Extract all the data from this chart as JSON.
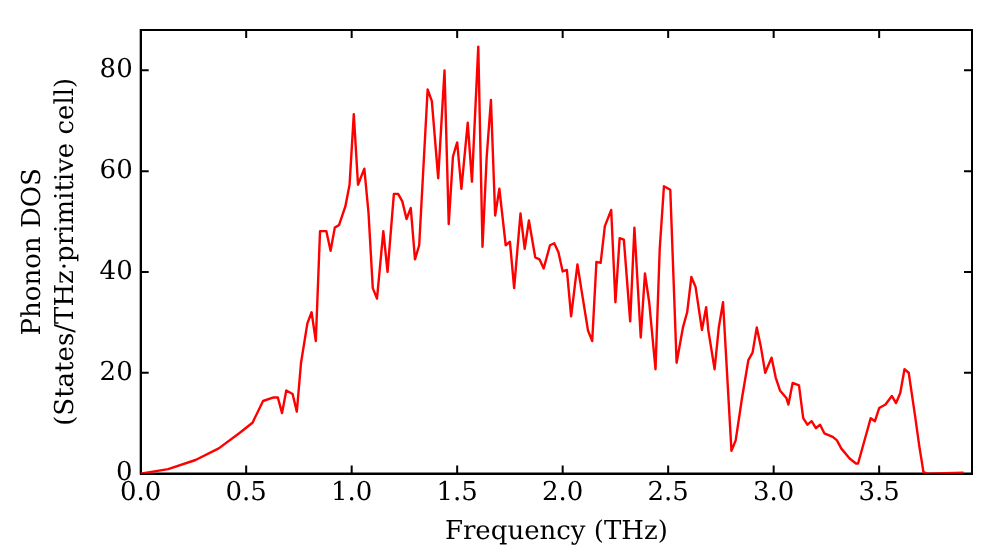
{
  "chart_data": {
    "type": "line",
    "xlabel": "Frequency (THz)",
    "ylabel": "Phonon DOS\n(States/THz·primitive cell)",
    "xlim": [
      0,
      3.94
    ],
    "ylim": [
      0,
      88
    ],
    "xticks": [
      {
        "value": 0,
        "label": "0.0"
      },
      {
        "value": 0.5,
        "label": "0.5"
      },
      {
        "value": 1,
        "label": "1.0"
      },
      {
        "value": 1.5,
        "label": "1.5"
      },
      {
        "value": 2,
        "label": "2.0"
      },
      {
        "value": 2.5,
        "label": "2.5"
      },
      {
        "value": 3,
        "label": "3.0"
      },
      {
        "value": 3.5,
        "label": "3.5"
      }
    ],
    "yticks": [
      0,
      20,
      40,
      60,
      80
    ],
    "grid": false,
    "legend": false,
    "marker": "none",
    "line_style": "solid",
    "series": [
      {
        "color": "#ff0000",
        "x": [
          0,
          0.13,
          0.26,
          0.37,
          0.47,
          0.53,
          0.58,
          0.63,
          0.65,
          0.67,
          0.69,
          0.72,
          0.74,
          0.76,
          0.79,
          0.81,
          0.83,
          0.85,
          0.88,
          0.9,
          0.92,
          0.94,
          0.97,
          0.99,
          1.01,
          1.03,
          1.06,
          1.08,
          1.1,
          1.12,
          1.15,
          1.17,
          1.2,
          1.22,
          1.24,
          1.26,
          1.28,
          1.3,
          1.32,
          1.36,
          1.38,
          1.41,
          1.44,
          1.46,
          1.48,
          1.5,
          1.52,
          1.55,
          1.57,
          1.6,
          1.62,
          1.64,
          1.66,
          1.68,
          1.7,
          1.73,
          1.75,
          1.77,
          1.8,
          1.82,
          1.84,
          1.87,
          1.89,
          1.91,
          1.94,
          1.96,
          1.98,
          2,
          2.02,
          2.04,
          2.07,
          2.09,
          2.12,
          2.14,
          2.16,
          2.18,
          2.2,
          2.23,
          2.25,
          2.27,
          2.29,
          2.32,
          2.34,
          2.37,
          2.39,
          2.41,
          2.44,
          2.46,
          2.48,
          2.51,
          2.54,
          2.57,
          2.59,
          2.61,
          2.63,
          2.66,
          2.68,
          2.69,
          2.72,
          2.74,
          2.76,
          2.8,
          2.82,
          2.85,
          2.88,
          2.9,
          2.92,
          2.94,
          2.96,
          2.99,
          3.01,
          3.03,
          3.06,
          3.07,
          3.09,
          3.12,
          3.14,
          3.16,
          3.18,
          3.2,
          3.22,
          3.24,
          3.28,
          3.3,
          3.32,
          3.36,
          3.39,
          3.4,
          3.44,
          3.46,
          3.48,
          3.5,
          3.53,
          3.56,
          3.58,
          3.6,
          3.62,
          3.64,
          3.67,
          3.69,
          3.71,
          3.73,
          3.9
        ],
        "values": [
          0,
          0.9,
          2.7,
          5,
          8.1,
          10.1,
          14.4,
          15.1,
          15.1,
          12,
          16.5,
          15.8,
          12.3,
          22,
          29.8,
          32,
          26.3,
          48.1,
          48.1,
          44.2,
          48.8,
          49.3,
          53,
          57.3,
          71.3,
          57.3,
          60.5,
          51.6,
          36.8,
          34.7,
          48.1,
          40,
          55.5,
          55.5,
          54,
          50.5,
          52.7,
          42.5,
          45.3,
          76.2,
          73.9,
          58.6,
          80,
          49.5,
          62.9,
          65.7,
          56.5,
          69.6,
          57.9,
          84.7,
          45,
          62.9,
          74.1,
          51.2,
          56.5,
          45.3,
          46,
          36.8,
          51.6,
          44.6,
          50.2,
          42.9,
          42.5,
          40.7,
          45.3,
          45.7,
          43.9,
          40.1,
          40.4,
          31.2,
          41.5,
          36.2,
          28.4,
          26.3,
          42,
          41.8,
          49.1,
          52.3,
          34,
          46.7,
          46.4,
          30.2,
          48.8,
          27,
          39.7,
          34,
          20.7,
          44.6,
          57,
          56.3,
          22,
          29,
          32,
          39,
          37,
          28.5,
          33,
          28.5,
          20.7,
          29,
          34,
          4.5,
          6.6,
          15,
          22.5,
          24,
          29,
          25,
          20,
          23,
          19,
          16.5,
          15,
          13.7,
          18,
          17.5,
          11,
          9.7,
          10.4,
          9,
          9.7,
          8,
          7.3,
          6.6,
          5,
          3,
          2,
          2,
          8,
          11,
          10.4,
          13,
          13.7,
          15.4,
          14,
          16,
          20.7,
          20,
          11.5,
          5.5,
          0.3,
          0,
          0.2
        ]
      }
    ]
  }
}
